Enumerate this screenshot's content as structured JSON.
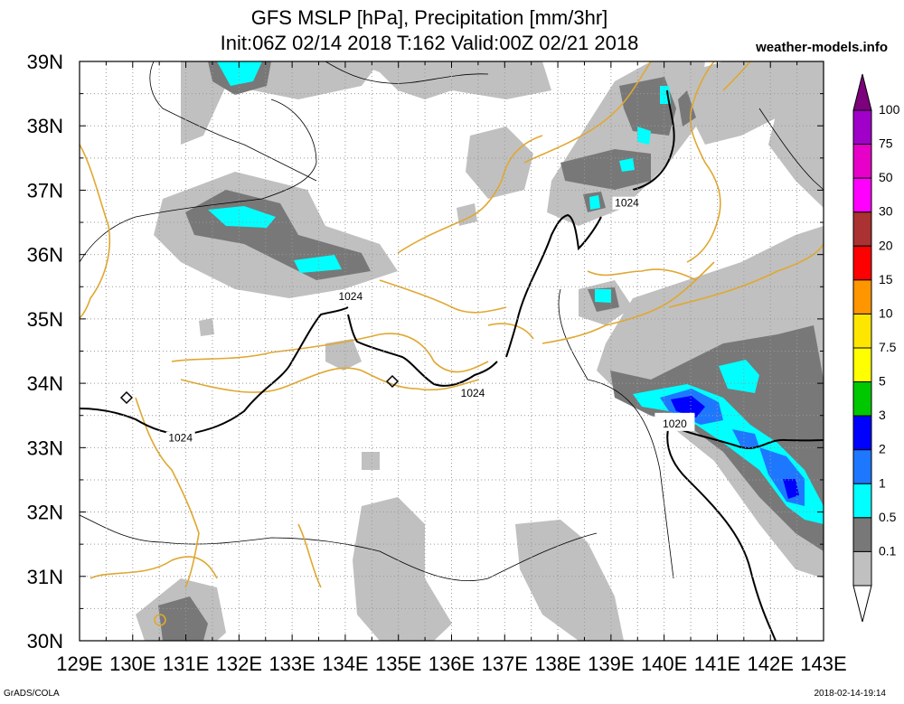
{
  "header": {
    "title_line1": "GFS MSLP [hPa], Precipitation [mm/3hr]",
    "title_line2": "Init:06Z 02/14 2018 T:162 Valid:00Z 02/21 2018",
    "site": "weather-models.info"
  },
  "footer": {
    "left": "GrADS/COLA",
    "right": "2018-02-14-19:14"
  },
  "axes": {
    "lon_labels": [
      "129E",
      "130E",
      "131E",
      "132E",
      "133E",
      "134E",
      "135E",
      "136E",
      "137E",
      "138E",
      "139E",
      "140E",
      "141E",
      "142E",
      "143E"
    ],
    "lat_labels": [
      "39N",
      "38N",
      "37N",
      "36N",
      "35N",
      "34N",
      "33N",
      "32N",
      "31N",
      "30N"
    ],
    "lon_range": [
      129,
      143
    ],
    "lat_range": [
      30,
      39
    ],
    "grid": "dotted"
  },
  "colorbar": {
    "labels": [
      "100",
      "75",
      "50",
      "30",
      "20",
      "15",
      "10",
      "7.5",
      "5",
      "3",
      "2",
      "1",
      "0.5",
      "0.1"
    ],
    "colors": [
      "#7d007d",
      "#a000c8",
      "#e600c8",
      "#ff00ff",
      "#aa3232",
      "#ff0000",
      "#ff9600",
      "#ffe600",
      "#ffff00",
      "#00c800",
      "#0000ff",
      "#1e78ff",
      "#00ffff",
      "#787878",
      "#c0c0c0",
      "#ffffff"
    ]
  },
  "isobars": {
    "labels": [
      {
        "text": "1024",
        "lon": 139.3,
        "lat": 36.8
      },
      {
        "text": "1024",
        "lon": 134.1,
        "lat": 35.35
      },
      {
        "text": "1024",
        "lon": 136.4,
        "lat": 33.85
      },
      {
        "text": "1024",
        "lon": 130.9,
        "lat": 33.15
      },
      {
        "text": "1020",
        "lon": 140.2,
        "lat": 33.4
      }
    ]
  },
  "colors": {
    "coast": "#e0a830",
    "boundary": "#000000",
    "isobar": "#000000",
    "precip_light": "#c0c0c0",
    "precip_medium": "#787878",
    "precip_1": "#00ffff",
    "precip_2": "#1e78ff",
    "precip_3": "#0000ff"
  }
}
